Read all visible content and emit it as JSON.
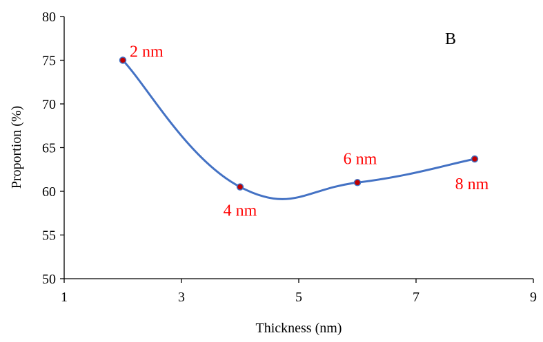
{
  "chart_data": {
    "type": "scatter",
    "smooth": true,
    "panel_label": "B",
    "xlabel": "Thickness (nm)",
    "ylabel": "Proportion (%)",
    "xlim": [
      1,
      9
    ],
    "ylim": [
      50,
      80
    ],
    "xticks": [
      1,
      3,
      5,
      7,
      9
    ],
    "yticks": [
      50,
      55,
      60,
      65,
      70,
      75,
      80
    ],
    "grid": false,
    "legend": "none",
    "series": [
      {
        "x": [
          2,
          4,
          6,
          8
        ],
        "y": [
          75,
          60.5,
          61,
          63.7
        ],
        "labels": [
          "2 nm",
          "4 nm",
          "6 nm",
          "8 nm"
        ]
      }
    ],
    "colors": {
      "line": "#4472c4",
      "marker": "#c00000",
      "label": "#ff0000"
    }
  }
}
